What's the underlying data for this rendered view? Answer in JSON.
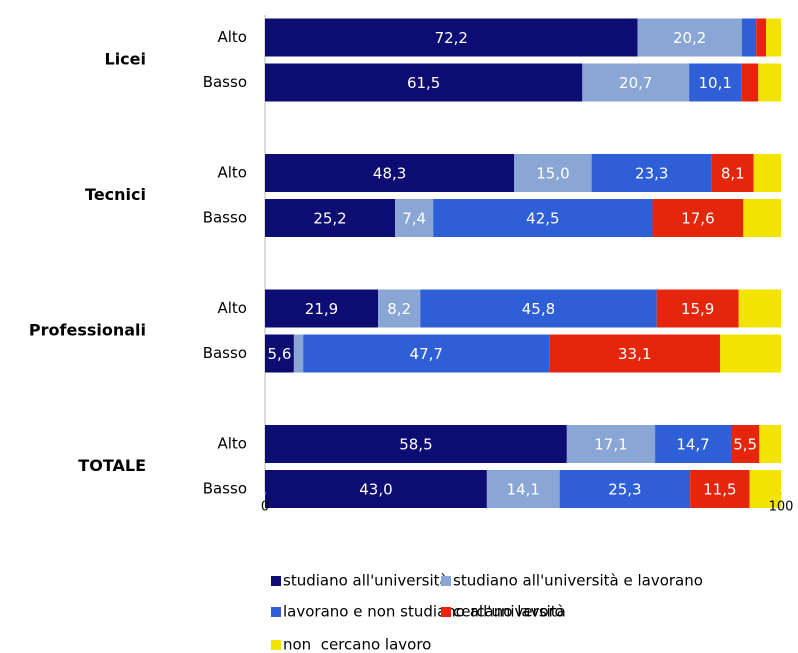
{
  "chart_data": {
    "type": "stacked-bar-horizontal",
    "groups": [
      "Licei",
      "Tecnici",
      "Professionali",
      "TOTALE"
    ],
    "categories": [
      "Alto",
      "Basso",
      "Alto",
      "Basso",
      "Alto",
      "Basso",
      "Alto",
      "Basso"
    ],
    "series": [
      {
        "name": "studiano all'università",
        "color": "#0c0c72",
        "values": [
          72.2,
          61.5,
          48.3,
          25.2,
          21.9,
          5.6,
          58.5,
          43.0
        ],
        "value_labels": [
          "72,2",
          "61,5",
          "48,3",
          "25,2",
          "21,9",
          "5,6",
          "58,5",
          "43,0"
        ]
      },
      {
        "name": "studiano all'università e lavorano",
        "color": "#8aa6d4",
        "values": [
          20.2,
          20.7,
          15.0,
          7.4,
          8.2,
          1.8,
          17.1,
          14.1
        ],
        "value_labels": [
          "20,2",
          "20,7",
          "15,0",
          "7,4",
          "8,2",
          null,
          "17,1",
          "14,1"
        ]
      },
      {
        "name": "lavorano e non studiano all'università",
        "color": "#2f5fd6",
        "values": [
          2.8,
          10.1,
          23.3,
          42.5,
          45.8,
          47.7,
          14.7,
          25.3
        ],
        "value_labels": [
          null,
          "10,1",
          "23,3",
          "42,5",
          "45,8",
          "47,7",
          "14,7",
          "25,3"
        ]
      },
      {
        "name": "cercano lavoro",
        "color": "#e4260c",
        "values": [
          1.9,
          3.3,
          8.1,
          17.6,
          15.9,
          33.1,
          5.5,
          11.5
        ],
        "value_labels": [
          null,
          null,
          "8,1",
          "17,6",
          "15,9",
          "33,1",
          "5,5",
          "11,5"
        ]
      },
      {
        "name": "non  cercano lavoro",
        "color": "#f2e400",
        "values": [
          2.9,
          4.4,
          5.3,
          7.3,
          8.2,
          11.8,
          4.2,
          6.1
        ],
        "value_labels": [
          null,
          null,
          null,
          null,
          null,
          null,
          null,
          null
        ]
      }
    ],
    "xlim": [
      0,
      100
    ],
    "xticks": [
      0,
      100
    ]
  }
}
